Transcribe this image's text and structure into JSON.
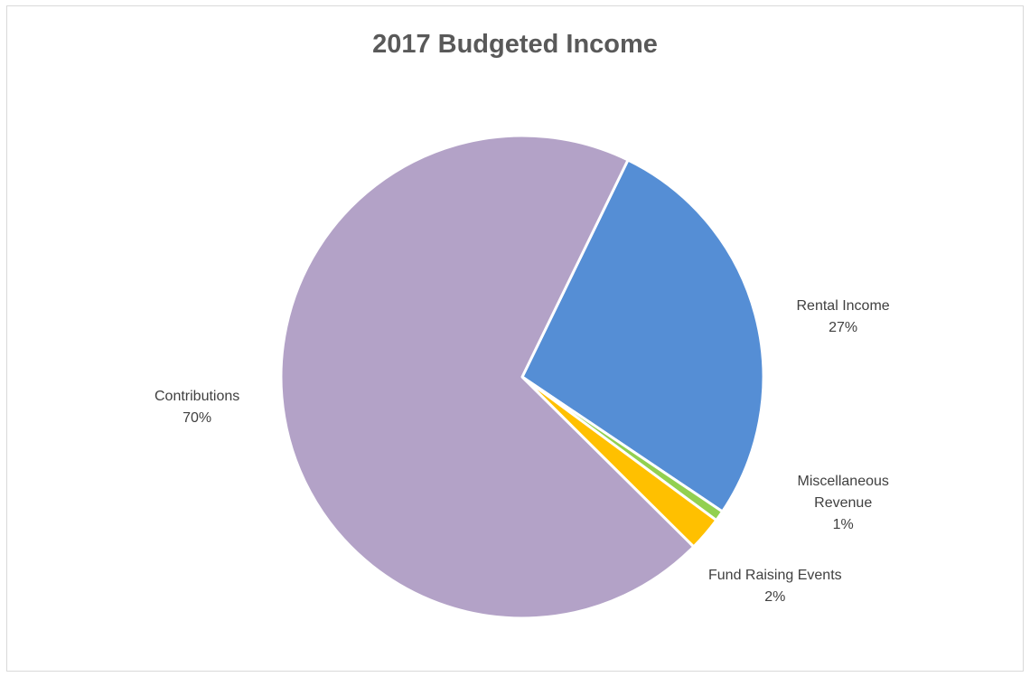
{
  "chart_data": {
    "type": "pie",
    "title": "2017 Budgeted Income",
    "start_angle_deg": 26,
    "direction": "clockwise",
    "slices": [
      {
        "name": "Rental Income",
        "label_lines": [
          "Rental Income"
        ],
        "value": 27.2,
        "display": "27%",
        "color": "#558ed5"
      },
      {
        "name": "Miscellaneous Revenue",
        "label_lines": [
          "Miscellaneous",
          "Revenue"
        ],
        "value": 0.7,
        "display": "1%",
        "color": "#92d050"
      },
      {
        "name": "Fund Raising Events",
        "label_lines": [
          "Fund Raising Events"
        ],
        "value": 2.3,
        "display": "2%",
        "color": "#ffc000"
      },
      {
        "name": "Contributions",
        "label_lines": [
          "Contributions"
        ],
        "value": 69.8,
        "display": "70%",
        "color": "#b3a2c7"
      }
    ]
  }
}
